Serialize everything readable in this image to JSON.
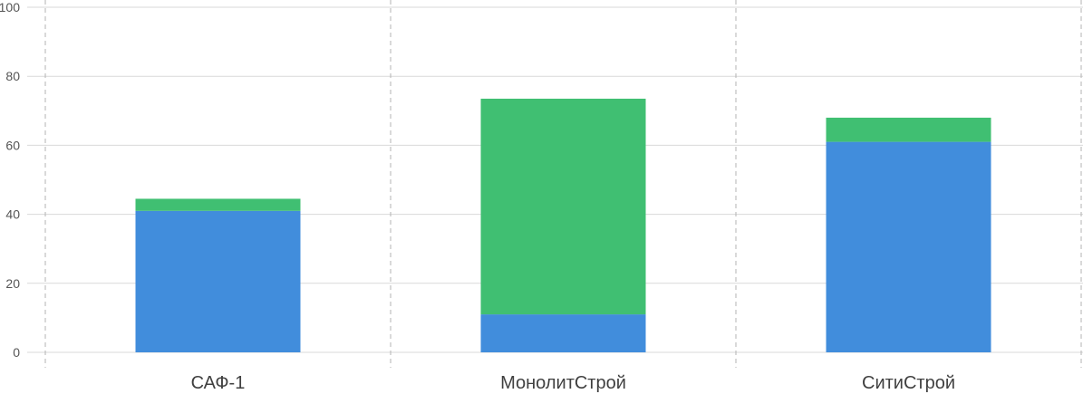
{
  "chart_data": {
    "type": "bar",
    "stacked": true,
    "categories": [
      "САФ-1",
      "МонолитСтрой",
      "СитиСтрой"
    ],
    "series": [
      {
        "color": "#418ddc",
        "values": [
          41,
          11,
          61
        ]
      },
      {
        "color": "#40bf72",
        "values": [
          3.5,
          62.5,
          7
        ]
      }
    ],
    "ylim": [
      0,
      100
    ],
    "yticks": [
      "0",
      "20",
      "40",
      "60",
      "80",
      "100"
    ],
    "grid": true,
    "legend": "none",
    "title": "",
    "xlabel": "",
    "ylabel": ""
  }
}
